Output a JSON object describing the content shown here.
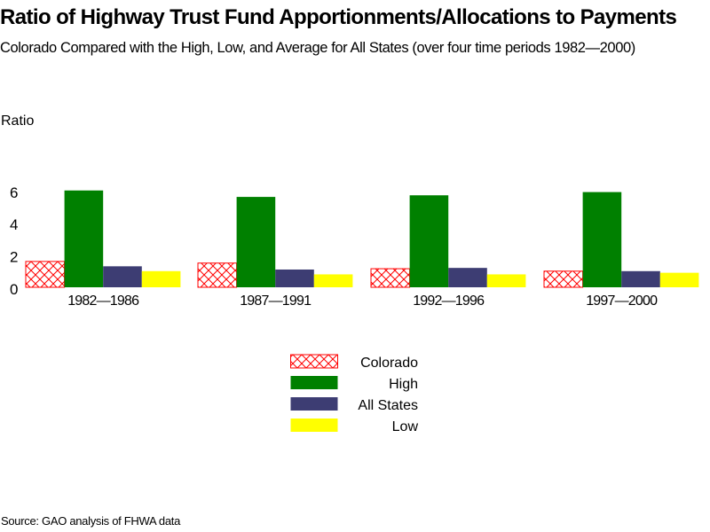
{
  "chart_data": {
    "type": "bar",
    "title": "Ratio of Highway Trust Fund Apportionments/Allocations to Payments",
    "subtitle": "Colorado Compared with the High, Low, and Average for All States (over four time periods 1982—2000)",
    "ylabel": "Ratio",
    "xlabel": "",
    "ylim": [
      0,
      6
    ],
    "yticks": [
      "0",
      "2",
      "4",
      "6"
    ],
    "categories": [
      "1982—1986",
      "1987—1991",
      "1992—1996",
      "1997—2000"
    ],
    "series": [
      {
        "name": "Colorado",
        "color": "#ff0000",
        "pattern": "crosshatch",
        "values": [
          1.6,
          1.5,
          1.15,
          1.0
        ]
      },
      {
        "name": "High",
        "color": "#008000",
        "values": [
          6.0,
          5.6,
          5.7,
          5.9
        ]
      },
      {
        "name": "All States",
        "color": "#3d3d73",
        "values": [
          1.3,
          1.1,
          1.2,
          1.0
        ]
      },
      {
        "name": "Low",
        "color": "#ffff00",
        "values": [
          1.0,
          0.8,
          0.8,
          0.9
        ]
      }
    ],
    "grid": false,
    "legend": "bottom-center",
    "source": "Source: GAO analysis of FHWA data"
  }
}
